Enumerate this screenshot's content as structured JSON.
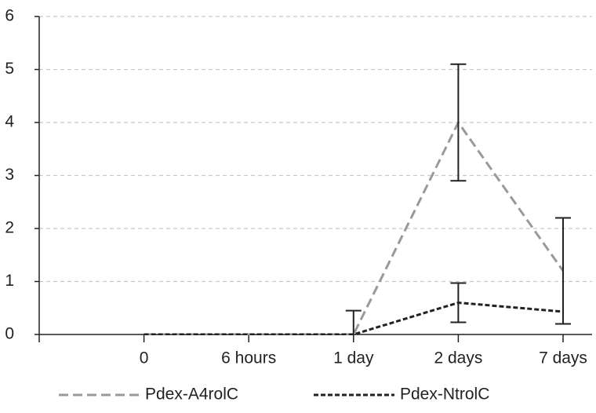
{
  "chart_data": {
    "type": "line",
    "categories": [
      "0",
      "6 hours",
      "1 day",
      "2 days",
      "7 days"
    ],
    "series": [
      {
        "name": "Pdex-A4rolC",
        "color": "#999999",
        "values": [
          0,
          0,
          0,
          4,
          1.2
        ],
        "errors": [
          null,
          null,
          null,
          1.1,
          1.0
        ]
      },
      {
        "name": "Pdex-NtrolC",
        "color": "#222222",
        "values": [
          0,
          0,
          0,
          0.6,
          0.43
        ],
        "errors": [
          null,
          null,
          0.45,
          0.37,
          null
        ]
      }
    ],
    "ylim": [
      0,
      6
    ],
    "yticks": [
      0,
      1,
      2,
      3,
      4,
      5,
      6
    ],
    "grid": true
  }
}
